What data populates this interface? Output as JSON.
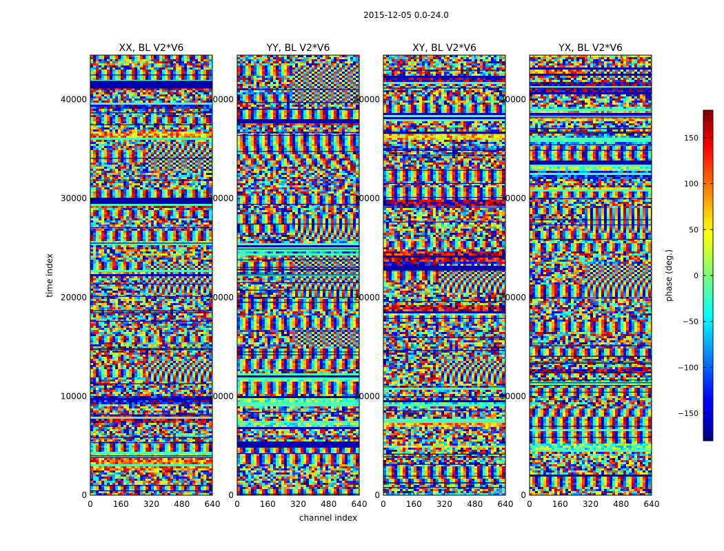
{
  "chart_data": {
    "type": "heatmap",
    "suptitle": "2015-12-05 0.0-24.0",
    "ylabel": "time index",
    "xlabel": "channel index",
    "xlim": [
      0,
      640
    ],
    "ylim": [
      0,
      44500
    ],
    "x_ticks": [
      0,
      160,
      320,
      480,
      640
    ],
    "y_ticks": [
      0,
      10000,
      20000,
      30000,
      40000
    ],
    "colorscale": "jet",
    "panels": [
      {
        "title": "XX, BL V2*V6",
        "fringe_rows": [
          [
            20500,
            23500
          ],
          [
            33000,
            35500
          ],
          [
            11500,
            13500
          ]
        ]
      },
      {
        "title": "YY, BL V2*V6",
        "fringe_rows": [
          [
            20000,
            24500
          ],
          [
            26000,
            28000
          ],
          [
            39500,
            43500
          ],
          [
            15000,
            17000
          ]
        ]
      },
      {
        "title": "XY, BL V2*V6",
        "fringe_rows": [
          [
            20500,
            23500
          ],
          [
            11500,
            13500
          ]
        ]
      },
      {
        "title": "YX, BL V2*V6",
        "fringe_rows": [
          [
            20000,
            23500
          ],
          [
            26500,
            29000
          ],
          [
            42000,
            43500
          ]
        ]
      }
    ],
    "colorbar": {
      "label": "phase (deg.)",
      "range": [
        -180,
        180
      ],
      "ticks": [
        -150,
        -100,
        -50,
        0,
        50,
        100,
        150
      ],
      "tick_labels": [
        "−150",
        "−100",
        "−50",
        "0",
        "50",
        "100",
        "150"
      ]
    }
  }
}
